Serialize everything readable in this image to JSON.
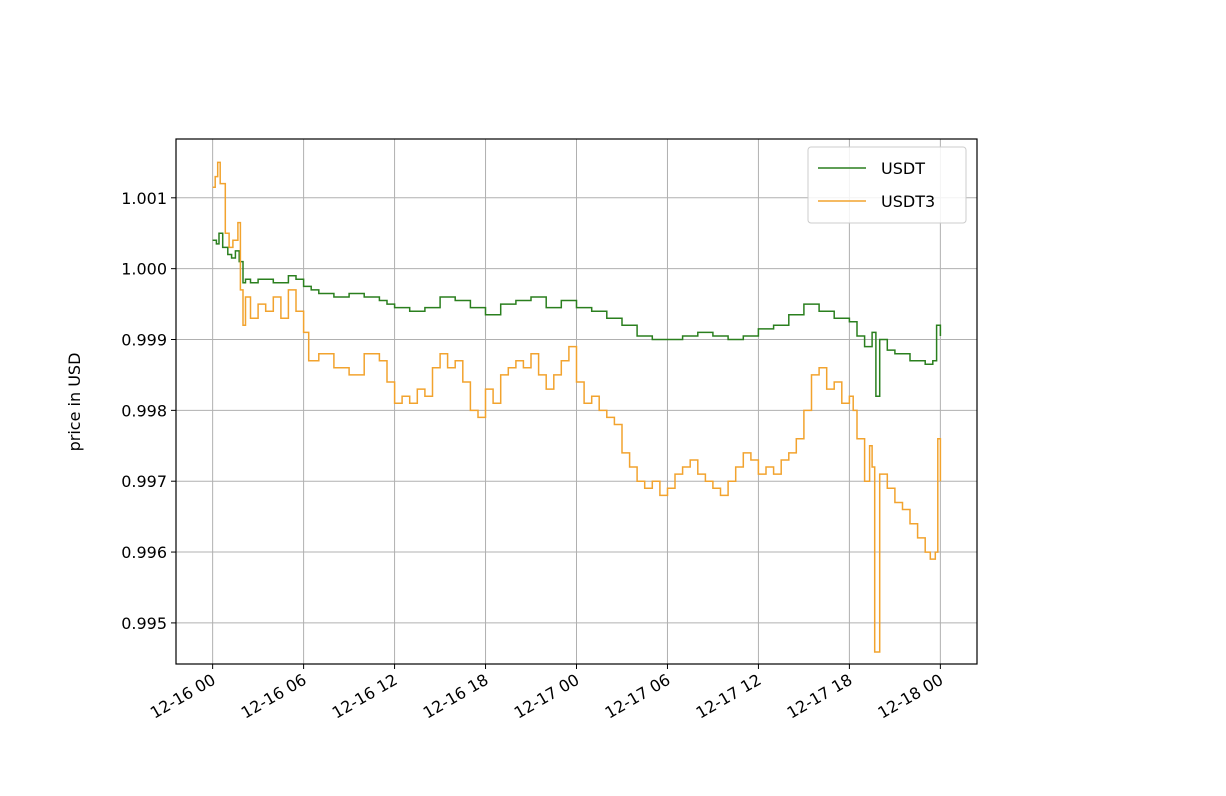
{
  "chart_data": {
    "type": "line",
    "title": "",
    "xlabel": "",
    "ylabel": "price in USD",
    "x_ticks": [
      {
        "value": "2019-12-16T00:00",
        "label": "12-16 00"
      },
      {
        "value": "2019-12-16T06:00",
        "label": "12-16 06"
      },
      {
        "value": "2019-12-16T12:00",
        "label": "12-16 12"
      },
      {
        "value": "2019-12-16T18:00",
        "label": "12-16 18"
      },
      {
        "value": "2019-12-17T00:00",
        "label": "12-17 00"
      },
      {
        "value": "2019-12-17T06:00",
        "label": "12-17 06"
      },
      {
        "value": "2019-12-17T12:00",
        "label": "12-17 12"
      },
      {
        "value": "2019-12-17T18:00",
        "label": "12-17 18"
      },
      {
        "value": "2019-12-18T00:00",
        "label": "12-18 00"
      }
    ],
    "y_ticks": [
      {
        "value": 0.995,
        "label": "0.995"
      },
      {
        "value": 0.996,
        "label": "0.996"
      },
      {
        "value": 0.997,
        "label": "0.997"
      },
      {
        "value": 0.998,
        "label": "0.998"
      },
      {
        "value": 0.999,
        "label": "0.999"
      },
      {
        "value": 1.0,
        "label": "1.000"
      },
      {
        "value": 1.001,
        "label": "1.001"
      }
    ],
    "xlim": [
      "2019-12-15T21:35",
      "2019-12-18T02:25"
    ],
    "ylim": [
      0.99442,
      1.00183
    ],
    "grid": true,
    "legend_position": "top-right",
    "series": [
      {
        "name": "USDT",
        "color": "#2a7f1e",
        "x": [
          "2019-12-16T00:00",
          "2019-12-16T00:15",
          "2019-12-16T00:25",
          "2019-12-16T00:40",
          "2019-12-16T01:00",
          "2019-12-16T01:15",
          "2019-12-16T01:30",
          "2019-12-16T01:45",
          "2019-12-16T02:00",
          "2019-12-16T02:10",
          "2019-12-16T02:30",
          "2019-12-16T03:00",
          "2019-12-16T04:00",
          "2019-12-16T05:00",
          "2019-12-16T05:30",
          "2019-12-16T06:00",
          "2019-12-16T06:30",
          "2019-12-16T07:00",
          "2019-12-16T08:00",
          "2019-12-16T09:00",
          "2019-12-16T10:00",
          "2019-12-16T11:00",
          "2019-12-16T11:30",
          "2019-12-16T12:00",
          "2019-12-16T13:00",
          "2019-12-16T14:00",
          "2019-12-16T15:00",
          "2019-12-16T16:00",
          "2019-12-16T17:00",
          "2019-12-16T18:00",
          "2019-12-16T19:00",
          "2019-12-16T20:00",
          "2019-12-16T21:00",
          "2019-12-16T22:00",
          "2019-12-16T23:00",
          "2019-12-17T00:00",
          "2019-12-17T01:00",
          "2019-12-17T02:00",
          "2019-12-17T03:00",
          "2019-12-17T04:00",
          "2019-12-17T05:00",
          "2019-12-17T06:00",
          "2019-12-17T07:00",
          "2019-12-17T08:00",
          "2019-12-17T09:00",
          "2019-12-17T10:00",
          "2019-12-17T11:00",
          "2019-12-17T12:00",
          "2019-12-17T13:00",
          "2019-12-17T14:00",
          "2019-12-17T15:00",
          "2019-12-17T16:00",
          "2019-12-17T17:00",
          "2019-12-17T18:00",
          "2019-12-17T18:30",
          "2019-12-17T19:00",
          "2019-12-17T19:30",
          "2019-12-17T19:45",
          "2019-12-17T20:00",
          "2019-12-17T20:30",
          "2019-12-17T21:00",
          "2019-12-17T22:00",
          "2019-12-17T23:00",
          "2019-12-17T23:30",
          "2019-12-17T23:45",
          "2019-12-18T00:00"
        ],
        "values": [
          1.0004,
          1.00035,
          1.0005,
          1.0003,
          1.0002,
          1.00015,
          1.00025,
          1.0001,
          0.9998,
          0.99985,
          0.9998,
          0.99985,
          0.9998,
          0.9999,
          0.99985,
          0.99975,
          0.9997,
          0.99965,
          0.9996,
          0.99965,
          0.9996,
          0.99955,
          0.9995,
          0.99945,
          0.9994,
          0.99945,
          0.9996,
          0.99955,
          0.99945,
          0.99935,
          0.9995,
          0.99955,
          0.9996,
          0.99945,
          0.99955,
          0.99945,
          0.9994,
          0.9993,
          0.9992,
          0.99905,
          0.999,
          0.999,
          0.99905,
          0.9991,
          0.99905,
          0.999,
          0.99905,
          0.99915,
          0.9992,
          0.99935,
          0.9995,
          0.9994,
          0.9993,
          0.99925,
          0.99905,
          0.9989,
          0.9991,
          0.9982,
          0.999,
          0.99885,
          0.9988,
          0.9987,
          0.99865,
          0.9987,
          0.9992,
          0.99905
        ]
      },
      {
        "name": "USDT3",
        "color": "#f2a32e",
        "x": [
          "2019-12-16T00:00",
          "2019-12-16T00:10",
          "2019-12-16T00:20",
          "2019-12-16T00:30",
          "2019-12-16T00:50",
          "2019-12-16T01:05",
          "2019-12-16T01:20",
          "2019-12-16T01:40",
          "2019-12-16T01:50",
          "2019-12-16T02:00",
          "2019-12-16T02:10",
          "2019-12-16T02:30",
          "2019-12-16T03:00",
          "2019-12-16T03:30",
          "2019-12-16T04:00",
          "2019-12-16T04:30",
          "2019-12-16T05:00",
          "2019-12-16T05:30",
          "2019-12-16T06:00",
          "2019-12-16T06:20",
          "2019-12-16T07:00",
          "2019-12-16T08:00",
          "2019-12-16T09:00",
          "2019-12-16T10:00",
          "2019-12-16T11:00",
          "2019-12-16T11:30",
          "2019-12-16T12:00",
          "2019-12-16T12:30",
          "2019-12-16T13:00",
          "2019-12-16T13:30",
          "2019-12-16T14:00",
          "2019-12-16T14:30",
          "2019-12-16T15:00",
          "2019-12-16T15:30",
          "2019-12-16T16:00",
          "2019-12-16T16:30",
          "2019-12-16T17:00",
          "2019-12-16T17:30",
          "2019-12-16T18:00",
          "2019-12-16T18:30",
          "2019-12-16T19:00",
          "2019-12-16T19:30",
          "2019-12-16T20:00",
          "2019-12-16T20:30",
          "2019-12-16T21:00",
          "2019-12-16T21:30",
          "2019-12-16T22:00",
          "2019-12-16T22:30",
          "2019-12-16T23:00",
          "2019-12-16T23:30",
          "2019-12-17T00:00",
          "2019-12-17T00:30",
          "2019-12-17T01:00",
          "2019-12-17T01:30",
          "2019-12-17T02:00",
          "2019-12-17T02:30",
          "2019-12-17T03:00",
          "2019-12-17T03:30",
          "2019-12-17T04:00",
          "2019-12-17T04:30",
          "2019-12-17T05:00",
          "2019-12-17T05:30",
          "2019-12-17T06:00",
          "2019-12-17T06:30",
          "2019-12-17T07:00",
          "2019-12-17T07:30",
          "2019-12-17T08:00",
          "2019-12-17T08:30",
          "2019-12-17T09:00",
          "2019-12-17T09:30",
          "2019-12-17T10:00",
          "2019-12-17T10:30",
          "2019-12-17T11:00",
          "2019-12-17T11:30",
          "2019-12-17T12:00",
          "2019-12-17T12:30",
          "2019-12-17T13:00",
          "2019-12-17T13:30",
          "2019-12-17T14:00",
          "2019-12-17T14:30",
          "2019-12-17T15:00",
          "2019-12-17T15:30",
          "2019-12-17T16:00",
          "2019-12-17T16:30",
          "2019-12-17T17:00",
          "2019-12-17T17:30",
          "2019-12-17T18:00",
          "2019-12-17T18:15",
          "2019-12-17T18:30",
          "2019-12-17T19:00",
          "2019-12-17T19:20",
          "2019-12-17T19:30",
          "2019-12-17T19:40",
          "2019-12-17T20:00",
          "2019-12-17T20:30",
          "2019-12-17T21:00",
          "2019-12-17T21:30",
          "2019-12-17T22:00",
          "2019-12-17T22:30",
          "2019-12-17T23:00",
          "2019-12-17T23:20",
          "2019-12-17T23:40",
          "2019-12-17T23:50",
          "2019-12-18T00:00"
        ],
        "values": [
          1.00115,
          1.0013,
          1.0015,
          1.0012,
          1.0005,
          1.0003,
          1.0004,
          1.00065,
          0.9997,
          0.9992,
          0.9996,
          0.9993,
          0.9995,
          0.9994,
          0.9996,
          0.9993,
          0.9997,
          0.9994,
          0.9991,
          0.9987,
          0.9988,
          0.9986,
          0.9985,
          0.9988,
          0.9987,
          0.9984,
          0.9981,
          0.9982,
          0.9981,
          0.9983,
          0.9982,
          0.9986,
          0.9988,
          0.9986,
          0.9987,
          0.9984,
          0.998,
          0.9979,
          0.9983,
          0.9981,
          0.9985,
          0.9986,
          0.9987,
          0.9986,
          0.9988,
          0.9985,
          0.9983,
          0.9985,
          0.9987,
          0.9989,
          0.9984,
          0.9981,
          0.9982,
          0.998,
          0.9979,
          0.9978,
          0.9974,
          0.9972,
          0.997,
          0.9969,
          0.997,
          0.9968,
          0.9969,
          0.9971,
          0.9972,
          0.9973,
          0.9971,
          0.997,
          0.9969,
          0.9968,
          0.997,
          0.9972,
          0.9974,
          0.9973,
          0.9971,
          0.9972,
          0.9971,
          0.9973,
          0.9974,
          0.9976,
          0.998,
          0.9985,
          0.9986,
          0.9983,
          0.9984,
          0.9981,
          0.9982,
          0.998,
          0.9976,
          0.997,
          0.9975,
          0.9972,
          0.99459,
          0.9971,
          0.9969,
          0.9967,
          0.9966,
          0.9964,
          0.9962,
          0.996,
          0.9959,
          0.996,
          0.9976,
          0.997
        ]
      }
    ]
  }
}
